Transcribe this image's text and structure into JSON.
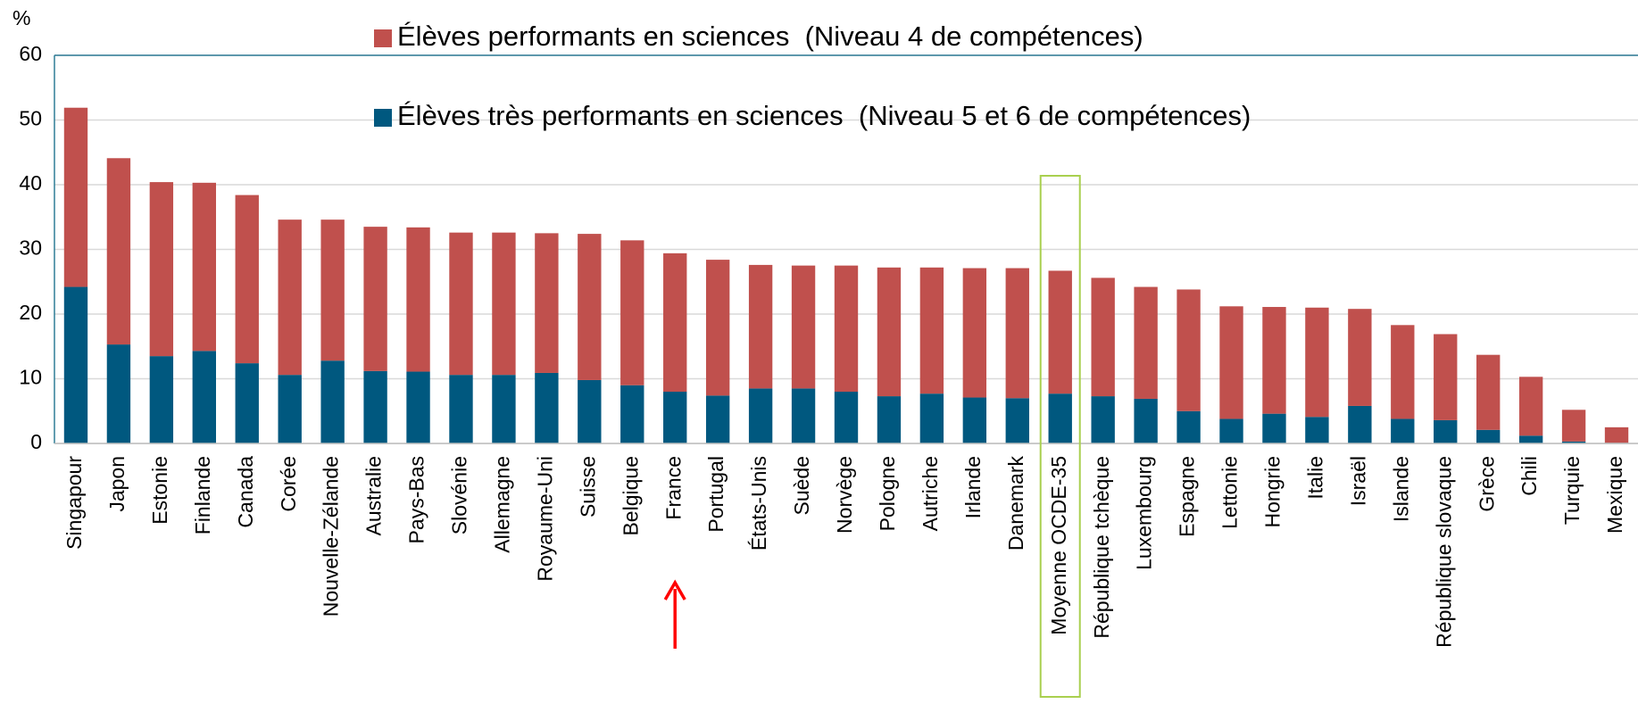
{
  "chart_data": {
    "type": "stacked_bar",
    "y_label": "%",
    "categories": [
      "Singapour",
      "Japon",
      "Estonie",
      "Finlande",
      "Canada",
      "Corée",
      "Nouvelle-Zélande",
      "Australie",
      "Pays-Bas",
      "Slovénie",
      "Allemagne",
      "Royaume-Uni",
      "Suisse",
      "Belgique",
      "France",
      "Portugal",
      "États-Unis",
      "Suède",
      "Norvège",
      "Pologne",
      "Autriche",
      "Irlande",
      "Danemark",
      "Moyenne OCDE-35",
      "République tchèque",
      "Luxembourg",
      "Espagne",
      "Lettonie",
      "Hongrie",
      "Italie",
      "Israël",
      "Islande",
      "République slovaque",
      "Grèce",
      "Chili",
      "Turquie",
      "Mexique"
    ],
    "series": [
      {
        "name": "Élèves très performants en sciences  (Niveau 5 et 6 de compétences)",
        "color": "#00587f",
        "values": [
          24.2,
          15.3,
          13.5,
          14.3,
          12.4,
          10.6,
          12.8,
          11.2,
          11.1,
          10.6,
          10.6,
          10.9,
          9.8,
          9.0,
          8.0,
          7.4,
          8.5,
          8.5,
          8.0,
          7.3,
          7.7,
          7.1,
          7.0,
          7.7,
          7.3,
          6.9,
          5.0,
          3.8,
          4.6,
          4.1,
          5.8,
          3.8,
          3.6,
          2.1,
          1.2,
          0.3,
          0.1
        ]
      },
      {
        "name": "Élèves performants en sciences  (Niveau 4 de compétences)",
        "color": "#c0504d",
        "values": [
          27.7,
          28.8,
          26.9,
          26.0,
          26.0,
          24.0,
          21.8,
          22.3,
          22.3,
          22.0,
          22.0,
          21.6,
          22.6,
          22.4,
          21.4,
          21.0,
          19.1,
          19.0,
          19.5,
          19.9,
          19.5,
          20.0,
          20.1,
          19.0,
          18.3,
          17.3,
          18.8,
          17.4,
          16.5,
          16.9,
          15.0,
          14.5,
          13.3,
          11.6,
          9.1,
          4.9,
          2.4
        ]
      }
    ],
    "ylim": [
      0,
      60
    ],
    "yticks": [
      0,
      10,
      20,
      30,
      40,
      50,
      60
    ],
    "grid": true
  }
}
